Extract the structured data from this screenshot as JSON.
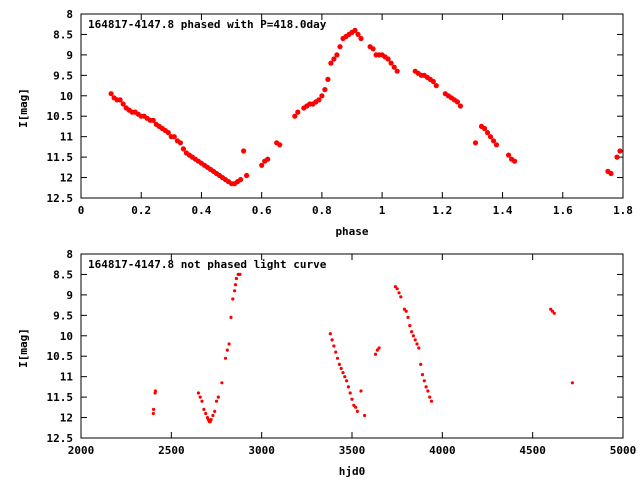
{
  "chart_data": [
    {
      "type": "scatter",
      "title": "164817-4147.8 phased with P=418.0day",
      "xlabel": "phase",
      "ylabel": "I[mag]",
      "xlim": [
        0,
        1.8
      ],
      "ylim": [
        12.5,
        8
      ],
      "y_inverted": true,
      "xticks": [
        "0",
        "0.2",
        "0.4",
        "0.6",
        "0.8",
        "1",
        "1.2",
        "1.4",
        "1.6",
        "1.8"
      ],
      "yticks": [
        "8",
        "8.5",
        "9",
        "9.5",
        "10",
        "10.5",
        "11",
        "11.5",
        "12",
        "12.5"
      ],
      "grid": false,
      "marker_color": "#ff0000",
      "marker": "filled-circle-large",
      "series": [
        {
          "x": [
            0.1,
            0.11,
            0.12,
            0.13,
            0.14,
            0.15,
            0.16,
            0.17,
            0.18,
            0.19,
            0.2,
            0.21,
            0.22,
            0.23,
            0.24,
            0.25,
            0.26,
            0.27,
            0.28,
            0.29,
            0.3,
            0.31,
            0.32,
            0.33,
            0.34,
            0.35,
            0.36,
            0.37,
            0.38,
            0.39,
            0.4,
            0.41,
            0.42,
            0.43,
            0.44,
            0.45,
            0.46,
            0.47,
            0.48,
            0.49,
            0.5,
            0.51,
            0.52,
            0.53,
            0.54,
            0.55,
            0.6,
            0.61,
            0.62,
            0.65,
            0.66,
            0.71,
            0.72,
            0.74,
            0.75,
            0.76,
            0.77,
            0.78,
            0.79,
            0.8,
            0.81,
            0.82,
            0.83,
            0.84,
            0.85,
            0.86,
            0.87,
            0.88,
            0.89,
            0.9,
            0.91,
            0.92,
            0.93,
            0.96,
            0.97,
            0.98,
            0.99,
            1.0,
            1.01,
            1.02,
            1.03,
            1.04,
            1.05,
            1.11,
            1.12,
            1.13,
            1.14,
            1.15,
            1.16,
            1.17,
            1.18,
            1.21,
            1.22,
            1.23,
            1.24,
            1.25,
            1.26,
            1.31,
            1.33,
            1.34,
            1.35,
            1.36,
            1.37,
            1.38,
            1.42,
            1.43,
            1.44,
            1.75,
            1.76,
            1.78,
            1.79
          ],
          "y": [
            9.95,
            10.05,
            10.1,
            10.1,
            10.2,
            10.3,
            10.35,
            10.4,
            10.4,
            10.45,
            10.5,
            10.5,
            10.55,
            10.6,
            10.6,
            10.7,
            10.75,
            10.8,
            10.85,
            10.9,
            11.0,
            11.0,
            11.1,
            11.15,
            11.3,
            11.4,
            11.45,
            11.5,
            11.55,
            11.6,
            11.65,
            11.7,
            11.75,
            11.8,
            11.85,
            11.9,
            11.95,
            12.0,
            12.05,
            12.1,
            12.15,
            12.15,
            12.1,
            12.05,
            11.35,
            11.95,
            11.7,
            11.6,
            11.55,
            11.15,
            11.2,
            10.5,
            10.4,
            10.3,
            10.25,
            10.2,
            10.2,
            10.15,
            10.1,
            10.0,
            9.85,
            9.6,
            9.2,
            9.1,
            9.0,
            8.8,
            8.6,
            8.55,
            8.5,
            8.45,
            8.4,
            8.5,
            8.6,
            8.8,
            8.85,
            9.0,
            9.0,
            9.0,
            9.05,
            9.1,
            9.2,
            9.3,
            9.4,
            9.4,
            9.45,
            9.5,
            9.5,
            9.55,
            9.6,
            9.65,
            9.75,
            9.95,
            10.0,
            10.05,
            10.1,
            10.15,
            10.25,
            11.15,
            10.75,
            10.8,
            10.9,
            11.0,
            11.1,
            11.2,
            11.45,
            11.55,
            11.6,
            11.85,
            11.9,
            11.5,
            11.35
          ]
        }
      ]
    },
    {
      "type": "scatter",
      "title": "164817-4147.8 not phased light curve",
      "xlabel": "hjd0",
      "ylabel": "I[mag]",
      "xlim": [
        2000,
        5000
      ],
      "ylim": [
        12.5,
        8
      ],
      "y_inverted": true,
      "xticks": [
        "2000",
        "2500",
        "3000",
        "3500",
        "4000",
        "4500",
        "5000"
      ],
      "yticks": [
        "8",
        "8.5",
        "9",
        "9.5",
        "10",
        "10.5",
        "11",
        "11.5",
        "12",
        "12.5"
      ],
      "grid": false,
      "marker_color": "#ff0000",
      "marker": "filled-circle-small",
      "series": [
        {
          "x": [
            2400,
            2402,
            2410,
            2412,
            2650,
            2660,
            2670,
            2680,
            2690,
            2700,
            2705,
            2710,
            2715,
            2720,
            2730,
            2740,
            2750,
            2760,
            2780,
            2800,
            2810,
            2820,
            2830,
            2840,
            2850,
            2855,
            2860,
            2870,
            2880,
            3380,
            3390,
            3400,
            3410,
            3420,
            3430,
            3440,
            3450,
            3460,
            3470,
            3480,
            3490,
            3500,
            3510,
            3520,
            3530,
            3550,
            3570,
            3630,
            3640,
            3650,
            3740,
            3750,
            3760,
            3770,
            3790,
            3800,
            3810,
            3820,
            3830,
            3840,
            3850,
            3860,
            3870,
            3880,
            3890,
            3900,
            3910,
            3920,
            3930,
            3940,
            4600,
            4610,
            4620,
            4720
          ],
          "y": [
            11.9,
            11.8,
            11.4,
            11.35,
            11.4,
            11.5,
            11.6,
            11.8,
            11.9,
            12.0,
            12.05,
            12.1,
            12.1,
            12.05,
            11.95,
            11.85,
            11.6,
            11.5,
            11.15,
            10.55,
            10.35,
            10.2,
            9.55,
            9.1,
            8.9,
            8.75,
            8.6,
            8.5,
            8.5,
            9.95,
            10.1,
            10.25,
            10.4,
            10.55,
            10.7,
            10.8,
            10.9,
            11.0,
            11.1,
            11.25,
            11.4,
            11.55,
            11.7,
            11.75,
            11.85,
            11.35,
            11.95,
            10.45,
            10.35,
            10.3,
            8.8,
            8.85,
            8.95,
            9.05,
            9.35,
            9.4,
            9.55,
            9.75,
            9.9,
            10.0,
            10.1,
            10.2,
            10.3,
            10.7,
            10.95,
            11.1,
            11.25,
            11.35,
            11.5,
            11.6,
            9.35,
            9.4,
            9.45,
            11.15
          ]
        }
      ]
    }
  ]
}
